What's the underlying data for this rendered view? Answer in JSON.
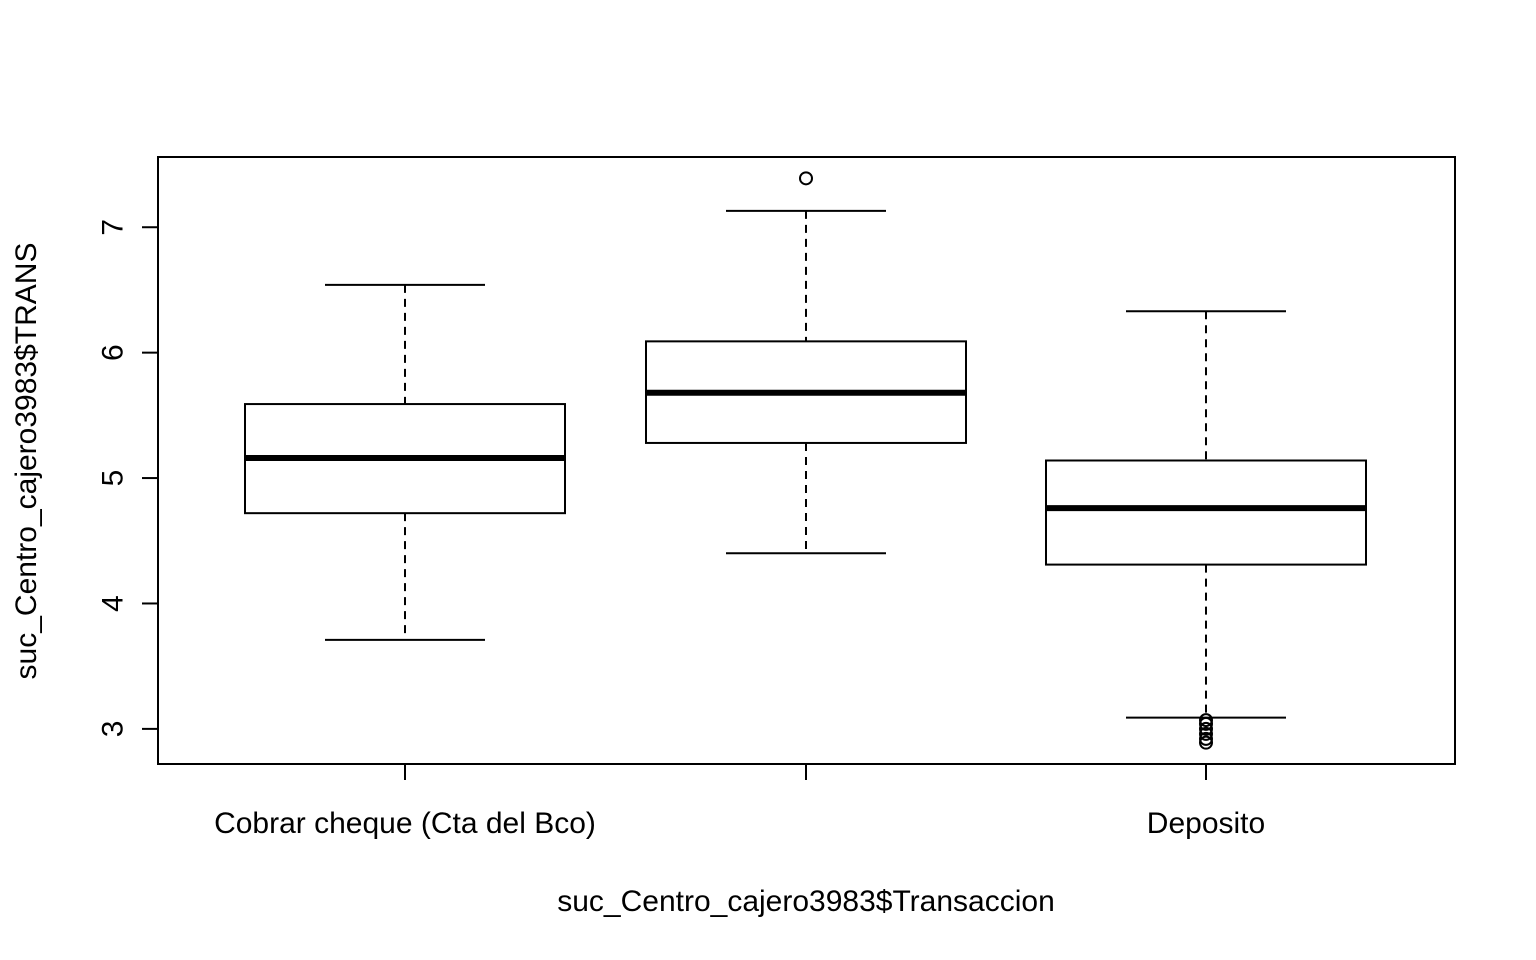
{
  "chart_data": {
    "type": "boxplot",
    "title": "",
    "xlabel": "suc_Centro_cajero3983$Transaccion",
    "ylabel": "suc_Centro_cajero3983$TRANS",
    "ylim": [
      2.72,
      7.56
    ],
    "yticks": [
      3,
      4,
      5,
      6,
      7
    ],
    "categories": [
      "Cobrar cheque (Cta del Bco)",
      "",
      "Deposito"
    ],
    "boxes": [
      {
        "category": "Cobrar cheque (Cta del Bco)",
        "whisker_low": 3.71,
        "q1": 4.72,
        "median": 5.16,
        "q3": 5.59,
        "whisker_high": 6.54,
        "outliers": []
      },
      {
        "category": "",
        "whisker_low": 4.4,
        "q1": 5.28,
        "median": 5.68,
        "q3": 6.09,
        "whisker_high": 7.13,
        "outliers": [
          7.39
        ]
      },
      {
        "category": "Deposito",
        "whisker_low": 3.09,
        "q1": 4.31,
        "median": 4.76,
        "q3": 5.14,
        "whisker_high": 6.33,
        "outliers": [
          3.07,
          3.04,
          3.0,
          2.96,
          2.92,
          2.89
        ]
      }
    ],
    "grid": false,
    "legend": "none",
    "colors": {
      "line": "#000000",
      "box_fill": "#ffffff",
      "background": "#ffffff"
    }
  }
}
